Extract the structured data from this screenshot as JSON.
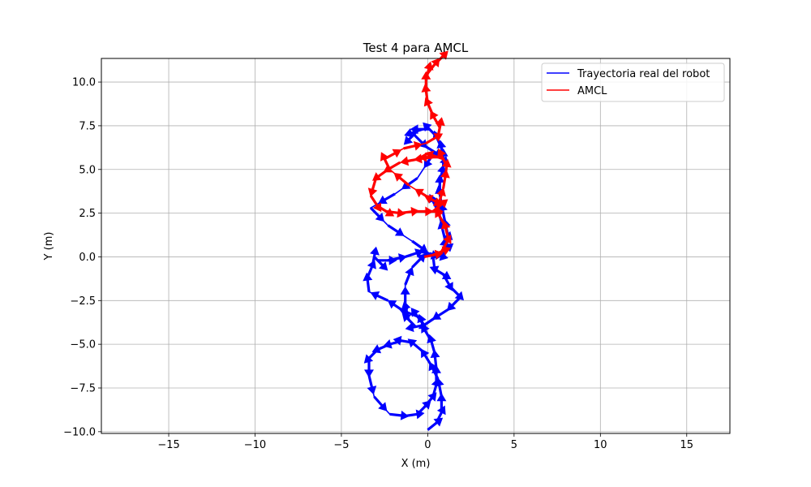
{
  "chart_data": {
    "type": "line",
    "title": "Test 4 para AMCL",
    "xlabel": "X (m)",
    "ylabel": "Y (m)",
    "xlim": [
      -18.9,
      17.5
    ],
    "ylim": [
      -10.1,
      11.35
    ],
    "xticks": [
      -15,
      -10,
      -5,
      0,
      5,
      10,
      15
    ],
    "yticks": [
      -10.0,
      -7.5,
      -5.0,
      -2.5,
      0.0,
      2.5,
      5.0,
      7.5,
      10.0
    ],
    "xtick_labels": [
      "−15",
      "−10",
      "−5",
      "0",
      "5",
      "10",
      "15"
    ],
    "ytick_labels": [
      "−10.0",
      "−7.5",
      "−5.0",
      "−2.5",
      "0.0",
      "2.5",
      "5.0",
      "7.5",
      "10.0"
    ],
    "grid": true,
    "legend_position": "top-right",
    "series": [
      {
        "name": "Trayectoria real del robot",
        "color": "#0000ff",
        "x": [
          0.0,
          0.5,
          0.8,
          0.8,
          0.6,
          0.2,
          -0.3,
          -0.9,
          -1.5,
          -2.2,
          -2.9,
          -3.4,
          -3.4,
          -3.1,
          -2.2,
          -1.3,
          -0.6,
          -0.2,
          0.3,
          0.5,
          0.5,
          0.4,
          0.2,
          -0.1,
          -0.3,
          -0.6,
          -1.4,
          -2.3,
          -3.4,
          -3.5,
          -3.2,
          -3.1,
          -2.9,
          -2.3,
          -1.3,
          -0.4,
          0.3,
          0.4,
          0.9,
          1.3,
          1.9,
          1.2,
          0.4,
          -0.2,
          -0.7,
          -1.1,
          -1.3,
          -1.3,
          -0.9,
          -0.2,
          0.6,
          1.0,
          1.2,
          1.0,
          0.8,
          0.7,
          0.7,
          0.8,
          0.9,
          0.9,
          0.8,
          0.5,
          0.1,
          -0.3,
          -0.6,
          -0.8,
          -0.1,
          0.4,
          -0.6,
          -1.9,
          -3.3,
          -2.3,
          -0.9,
          0.1,
          0.9,
          1.0,
          0.6,
          0.3
        ],
        "y": [
          -9.9,
          -9.5,
          -8.9,
          -8.0,
          -7.0,
          -6.2,
          -5.4,
          -4.9,
          -4.8,
          -5.0,
          -5.3,
          -5.8,
          -6.8,
          -8.0,
          -9.0,
          -9.1,
          -9.0,
          -8.6,
          -8.0,
          -7.3,
          -6.4,
          -5.5,
          -4.8,
          -4.3,
          -3.8,
          -3.4,
          -3.1,
          -2.5,
          -2.0,
          -1.2,
          -0.5,
          0.0,
          -0.2,
          -0.2,
          0.0,
          0.3,
          0.1,
          -0.7,
          -1.0,
          -1.7,
          -2.3,
          -3.0,
          -3.5,
          -3.9,
          -4.0,
          -3.6,
          -2.8,
          -1.6,
          -0.6,
          0.1,
          0.1,
          0.4,
          1.1,
          2.0,
          3.0,
          3.6,
          4.2,
          4.7,
          5.1,
          5.6,
          6.2,
          6.9,
          7.3,
          7.3,
          7.2,
          7.0,
          6.3,
          6.0,
          4.5,
          3.6,
          2.8,
          1.8,
          0.9,
          0.2,
          0.0,
          1.0,
          2.6,
          3.2
        ]
      },
      {
        "name": "AMCL",
        "color": "#ff0000",
        "x": [
          -0.2,
          0.3,
          0.8,
          1.2,
          1.0,
          0.7,
          0.6,
          0.9,
          1.0,
          1.1,
          0.9,
          0.6,
          0.3,
          -0.5,
          -1.6,
          -2.3,
          -3.0,
          -3.3,
          -2.9,
          -2.4,
          -1.6,
          -0.8,
          -0.2,
          0.3,
          0.8,
          0.2,
          -1.1,
          -2.2,
          -2.5,
          -1.4,
          -0.1,
          0.6,
          0.7,
          0.3,
          0.0,
          -0.1,
          -0.1,
          0.0,
          0.4,
          0.8
        ],
        "y": [
          0.0,
          0.1,
          0.3,
          1.0,
          1.8,
          2.3,
          2.9,
          3.9,
          4.5,
          5.2,
          5.6,
          5.7,
          5.7,
          5.6,
          5.4,
          5.0,
          4.5,
          3.5,
          2.9,
          2.6,
          2.5,
          2.6,
          2.6,
          2.6,
          3.0,
          3.3,
          4.1,
          5.0,
          5.6,
          6.2,
          6.5,
          6.9,
          7.4,
          8.1,
          8.8,
          9.5,
          10.1,
          10.5,
          11.0,
          11.4
        ]
      }
    ]
  }
}
